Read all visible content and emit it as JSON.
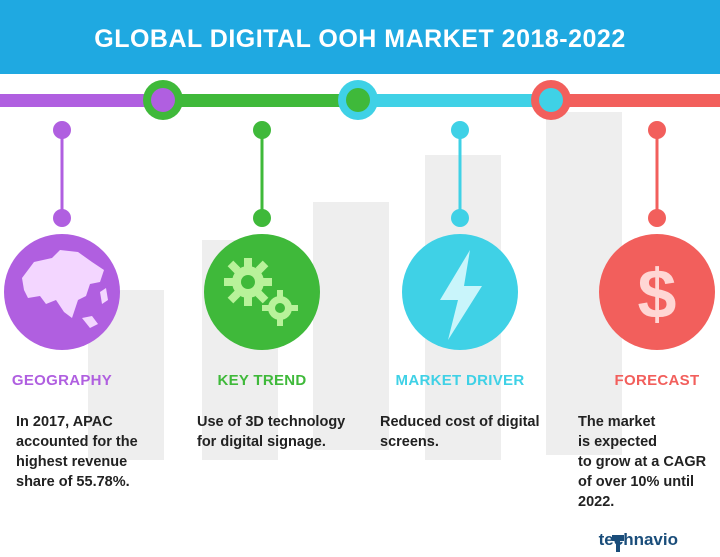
{
  "title": "GLOBAL DIGITAL OOH MARKET 2018-2022",
  "colors": {
    "header": "#1fa9e1",
    "geography": "#b05fe0",
    "key_trend": "#3fb93a",
    "market_driver": "#3fd1e6",
    "forecast": "#f25f5c"
  },
  "sections": [
    {
      "label": "GEOGRAPHY",
      "icon": "asia-map-icon",
      "text": [
        "In 2017, APAC",
        "accounted for the",
        "highest revenue",
        "share of 55.78%."
      ]
    },
    {
      "label": "KEY TREND",
      "icon": "gears-icon",
      "text": [
        "Use of 3D technology",
        "for digital signage."
      ]
    },
    {
      "label": "MARKET DRIVER",
      "icon": "lightning-icon",
      "text": [
        "Reduced cost of digital",
        "screens."
      ]
    },
    {
      "label": "FORECAST",
      "icon": "dollar-icon",
      "text": [
        "The market",
        "is expected",
        "to grow at a CAGR",
        "of over 10% until",
        "2022."
      ]
    }
  ],
  "brand": "technavio"
}
